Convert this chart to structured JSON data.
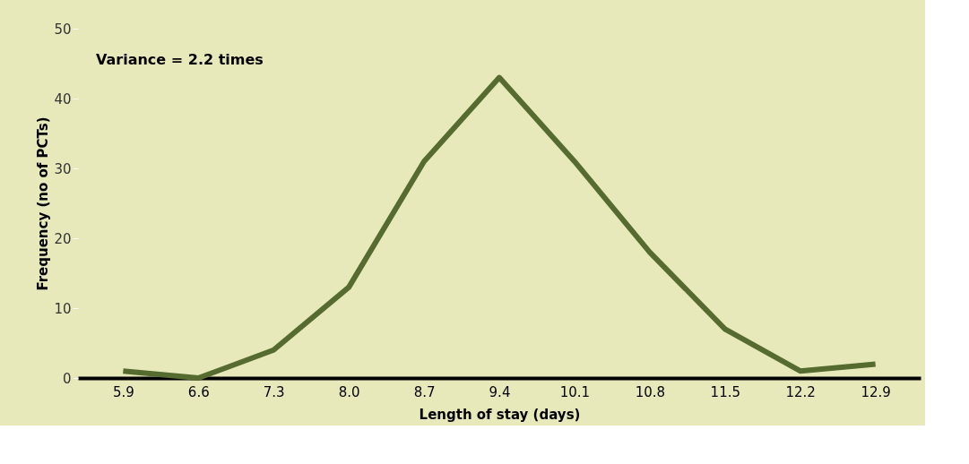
{
  "chart_data": {
    "type": "line",
    "xlabel": "Length of stay (days)",
    "ylabel": "Frequency (no of PCTs)",
    "categories": [
      "5.9",
      "6.6",
      "7.3",
      "8.0",
      "8.7",
      "9.4",
      "10.1",
      "10.8",
      "11.5",
      "12.2",
      "12.9"
    ],
    "series": [
      {
        "color": "#556b2f",
        "values": [
          1,
          0,
          4,
          13,
          31,
          43,
          31,
          18,
          7,
          1,
          2
        ]
      }
    ],
    "ylim": [
      0,
      50
    ],
    "yticks": [
      0,
      10,
      20,
      30,
      40,
      50
    ],
    "grid": false,
    "marker": "none",
    "line_style": "solid",
    "annotations": [
      "Variance = 2.2 times"
    ]
  }
}
